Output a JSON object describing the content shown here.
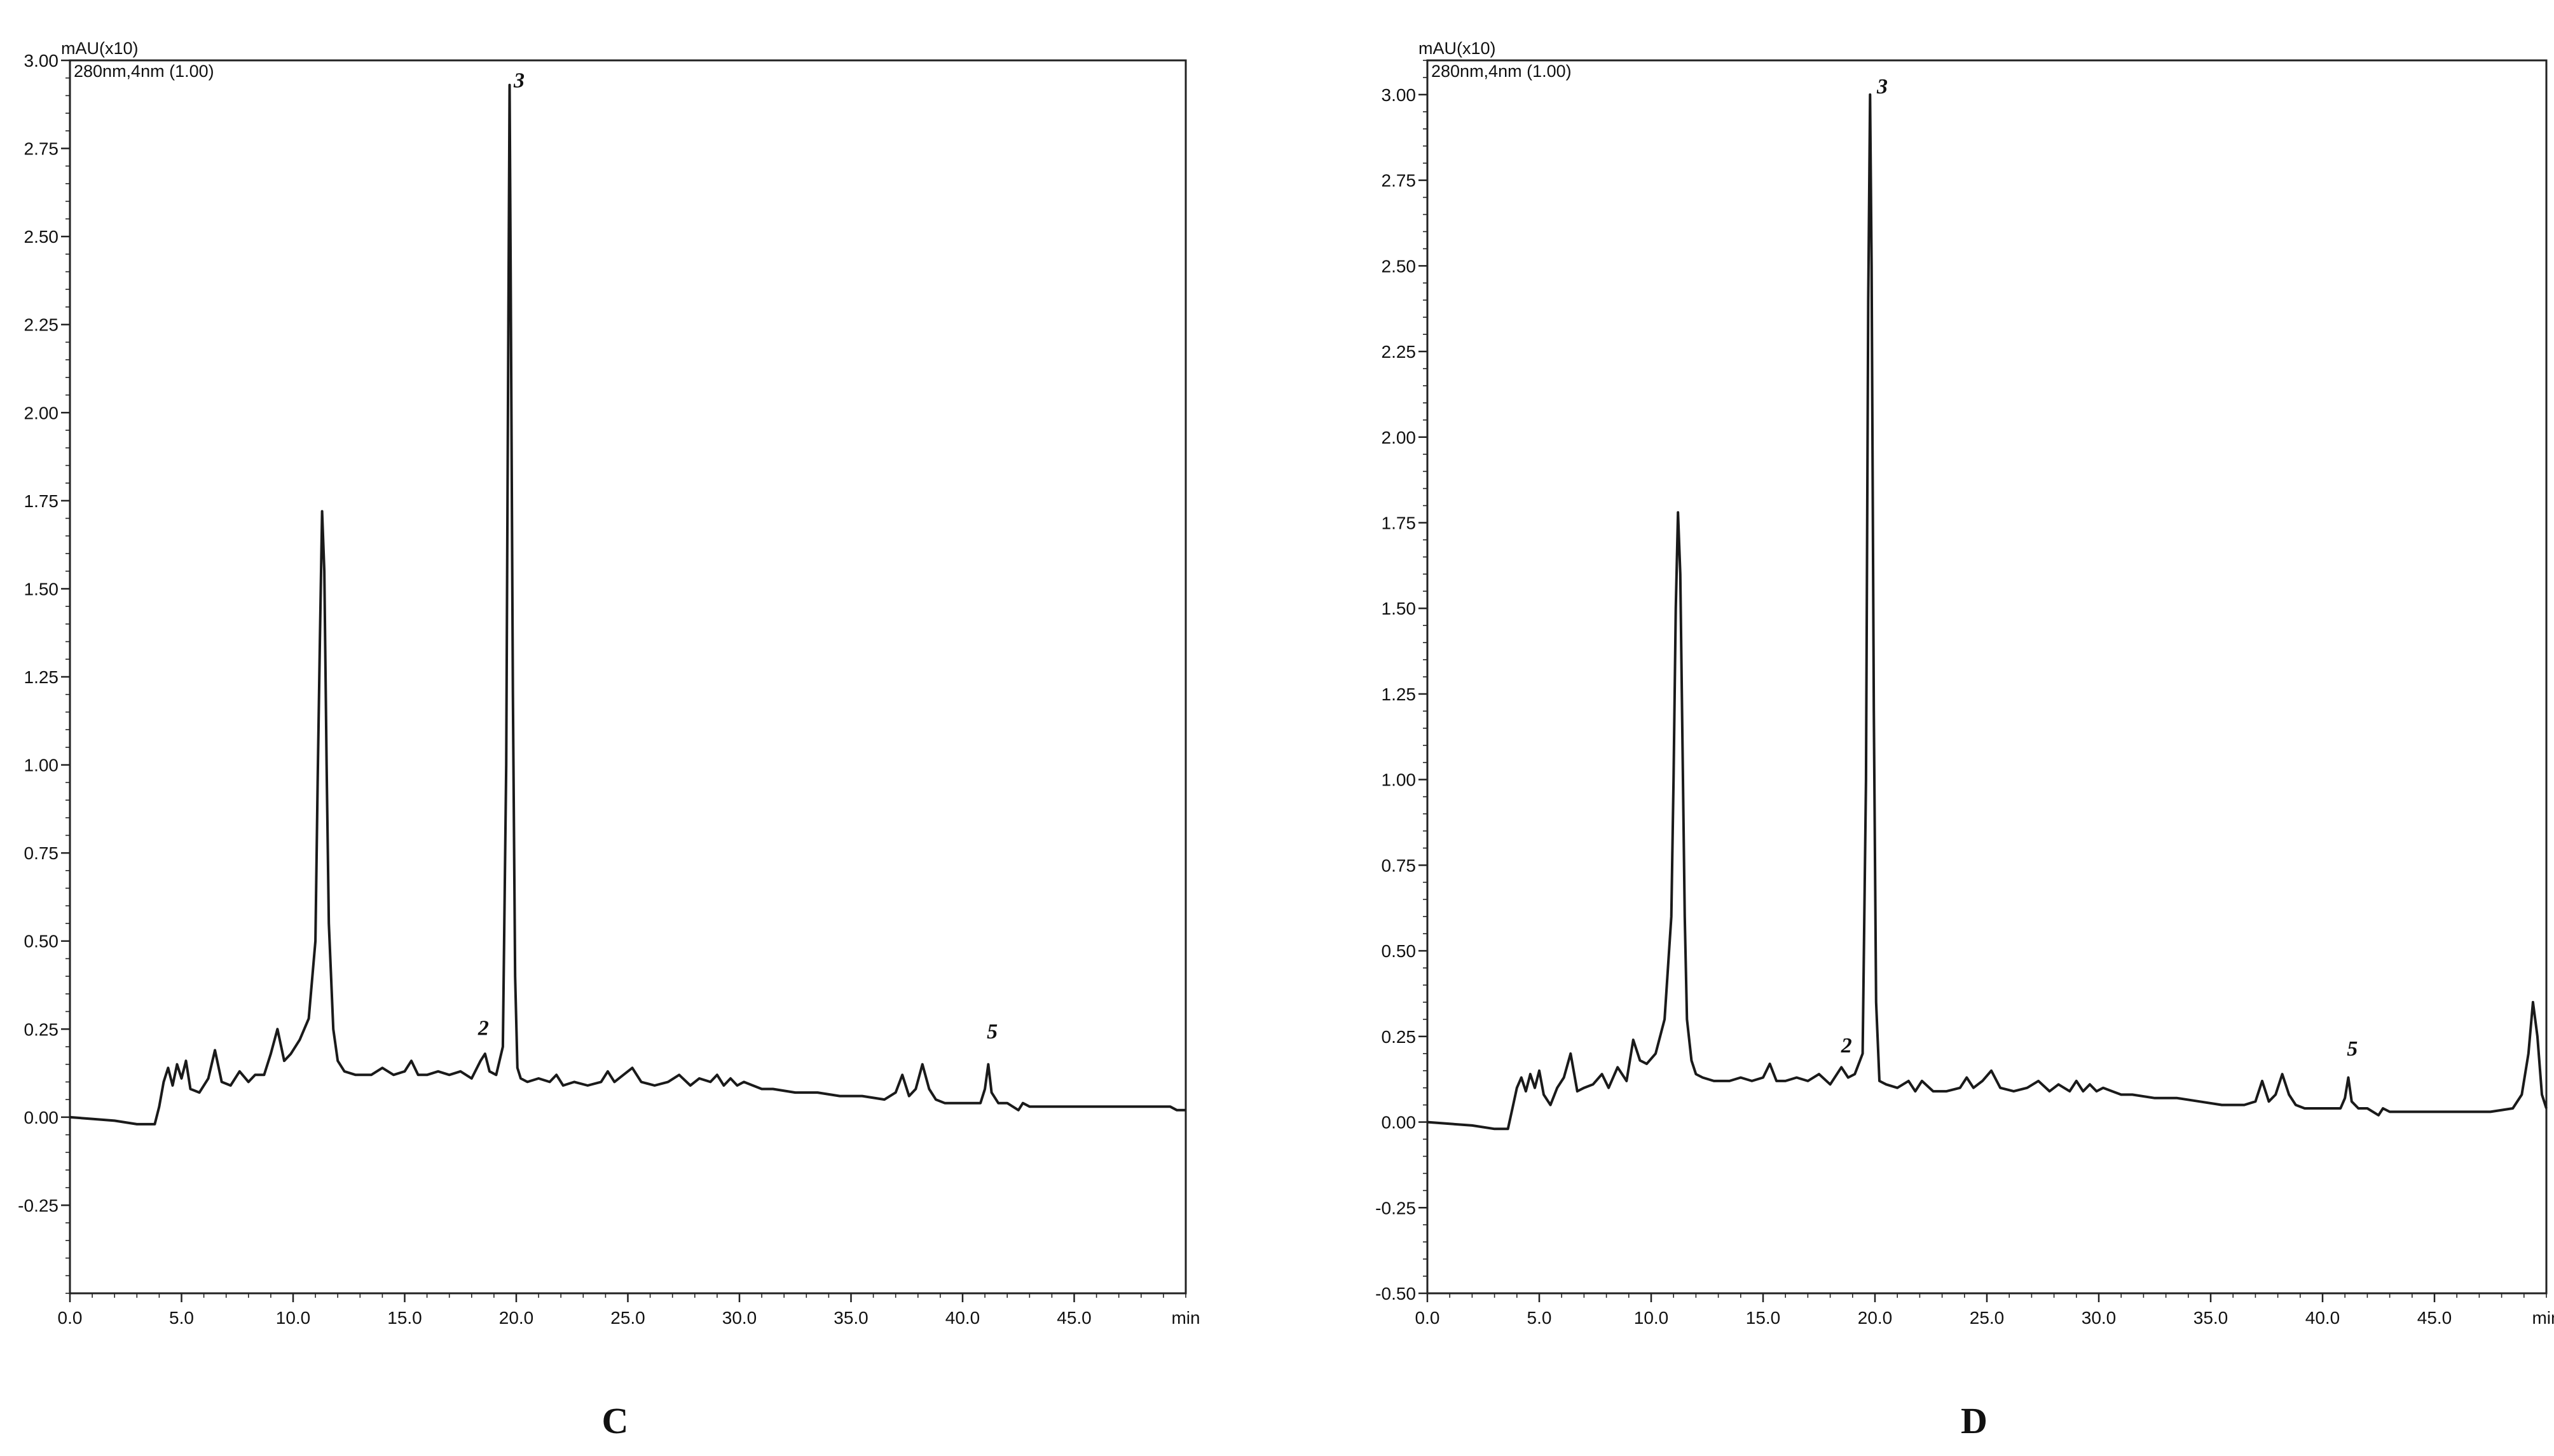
{
  "chart_data": [
    {
      "type": "line",
      "panel_label": "C",
      "unit_label": "mAU(x10)",
      "channel_label": "280nm,4nm (1.00)",
      "xlabel": "min",
      "xlim": [
        0,
        50
      ],
      "ylim": [
        -0.5,
        3.0
      ],
      "x_ticks": [
        "0.0",
        "5.0",
        "10.0",
        "15.0",
        "20.0",
        "25.0",
        "30.0",
        "35.0",
        "40.0",
        "45.0"
      ],
      "y_ticks": [
        "3.00",
        "2.75",
        "2.50",
        "2.25",
        "2.00",
        "1.75",
        "1.50",
        "1.25",
        "1.00",
        "0.75",
        "0.50",
        "0.25",
        "0.00",
        "-0.25"
      ],
      "y_tick_values": [
        3.0,
        2.75,
        2.5,
        2.25,
        2.0,
        1.75,
        1.5,
        1.25,
        1.0,
        0.75,
        0.5,
        0.25,
        0.0,
        -0.25
      ],
      "peak_labels": [
        {
          "text": "3",
          "x": 19.9,
          "y": 2.92
        },
        {
          "text": "2",
          "x": 18.3,
          "y": 0.23
        },
        {
          "text": "5",
          "x": 41.1,
          "y": 0.22
        }
      ],
      "series": [
        {
          "x": [
            0,
            1,
            2,
            3,
            3.8,
            4.0,
            4.2,
            4.4,
            4.6,
            4.8,
            5.0,
            5.2,
            5.4,
            5.8,
            6.2,
            6.5,
            6.8,
            7.2,
            7.6,
            8.0,
            8.3,
            8.7,
            9.0,
            9.3,
            9.6,
            9.9,
            10.3,
            10.7,
            11.0,
            11.1,
            11.2,
            11.3,
            11.4,
            11.5,
            11.6,
            11.8,
            12.0,
            12.3,
            12.8,
            13.5,
            14.0,
            14.5,
            15.0,
            15.3,
            15.6,
            16.0,
            16.5,
            17.0,
            17.5,
            18.0,
            18.4,
            18.6,
            18.8,
            19.1,
            19.4,
            19.55,
            19.65,
            19.7,
            19.75,
            19.85,
            19.95,
            20.05,
            20.2,
            20.5,
            21.0,
            21.5,
            21.8,
            22.1,
            22.6,
            23.2,
            23.8,
            24.1,
            24.4,
            24.8,
            25.2,
            25.6,
            26.2,
            26.8,
            27.3,
            27.8,
            28.2,
            28.7,
            29.0,
            29.3,
            29.6,
            29.9,
            30.2,
            30.6,
            31.0,
            31.5,
            32.5,
            33.5,
            34.5,
            35.5,
            36.5,
            37.0,
            37.3,
            37.6,
            37.9,
            38.2,
            38.5,
            38.8,
            39.2,
            39.6,
            40.0,
            40.5,
            40.8,
            41.0,
            41.15,
            41.3,
            41.6,
            42.0,
            42.5,
            42.7,
            43.0,
            43.5,
            44.5,
            45.5,
            46.5,
            47.5,
            48.5,
            49.3,
            49.6,
            50.0
          ],
          "y": [
            0.0,
            -0.005,
            -0.01,
            -0.02,
            -0.02,
            0.03,
            0.1,
            0.14,
            0.09,
            0.15,
            0.11,
            0.16,
            0.08,
            0.07,
            0.11,
            0.19,
            0.1,
            0.09,
            0.13,
            0.1,
            0.12,
            0.12,
            0.18,
            0.25,
            0.16,
            0.18,
            0.22,
            0.28,
            0.5,
            0.95,
            1.35,
            1.72,
            1.55,
            1.0,
            0.55,
            0.25,
            0.16,
            0.13,
            0.12,
            0.12,
            0.14,
            0.12,
            0.13,
            0.16,
            0.12,
            0.12,
            0.13,
            0.12,
            0.13,
            0.11,
            0.16,
            0.18,
            0.13,
            0.12,
            0.2,
            1.0,
            2.3,
            2.93,
            2.4,
            1.2,
            0.4,
            0.14,
            0.11,
            0.1,
            0.11,
            0.1,
            0.12,
            0.09,
            0.1,
            0.09,
            0.1,
            0.13,
            0.1,
            0.12,
            0.14,
            0.1,
            0.09,
            0.1,
            0.12,
            0.09,
            0.11,
            0.1,
            0.12,
            0.09,
            0.11,
            0.09,
            0.1,
            0.09,
            0.08,
            0.08,
            0.07,
            0.07,
            0.06,
            0.06,
            0.05,
            0.07,
            0.12,
            0.06,
            0.08,
            0.15,
            0.08,
            0.05,
            0.04,
            0.04,
            0.04,
            0.04,
            0.04,
            0.08,
            0.15,
            0.07,
            0.04,
            0.04,
            0.02,
            0.04,
            0.03,
            0.03,
            0.03,
            0.03,
            0.03,
            0.03,
            0.03,
            0.03,
            0.02,
            0.02
          ]
        }
      ]
    },
    {
      "type": "line",
      "panel_label": "D",
      "unit_label": "mAU(x10)",
      "channel_label": "280nm,4nm (1.00)",
      "xlabel": "min",
      "xlim": [
        0,
        50
      ],
      "ylim": [
        -0.5,
        3.1
      ],
      "x_ticks": [
        "0.0",
        "5.0",
        "10.0",
        "15.0",
        "20.0",
        "25.0",
        "30.0",
        "35.0",
        "40.0",
        "45.0"
      ],
      "y_ticks": [
        "3.00",
        "2.75",
        "2.50",
        "2.25",
        "2.00",
        "1.75",
        "1.50",
        "1.25",
        "1.00",
        "0.75",
        "0.50",
        "0.25",
        "0.00",
        "-0.25",
        "-0.50"
      ],
      "y_tick_values": [
        3.0,
        2.75,
        2.5,
        2.25,
        2.0,
        1.75,
        1.5,
        1.25,
        1.0,
        0.75,
        0.5,
        0.25,
        0.0,
        -0.25,
        -0.5
      ],
      "peak_labels": [
        {
          "text": "3",
          "x": 20.1,
          "y": 3.0
        },
        {
          "text": "2",
          "x": 18.5,
          "y": 0.2
        },
        {
          "text": "5",
          "x": 41.1,
          "y": 0.19
        }
      ],
      "series": [
        {
          "x": [
            0,
            1,
            2,
            3,
            3.6,
            3.8,
            4.0,
            4.2,
            4.4,
            4.6,
            4.8,
            5.0,
            5.2,
            5.5,
            5.8,
            6.1,
            6.4,
            6.7,
            7.0,
            7.4,
            7.8,
            8.1,
            8.5,
            8.9,
            9.2,
            9.5,
            9.8,
            10.2,
            10.6,
            10.9,
            11.0,
            11.1,
            11.2,
            11.3,
            11.4,
            11.5,
            11.6,
            11.8,
            12.0,
            12.3,
            12.8,
            13.5,
            14.0,
            14.5,
            15.0,
            15.3,
            15.6,
            16.0,
            16.5,
            17.0,
            17.5,
            18.0,
            18.5,
            18.8,
            19.1,
            19.45,
            19.6,
            19.7,
            19.78,
            19.85,
            19.95,
            20.05,
            20.2,
            20.5,
            21.0,
            21.5,
            21.8,
            22.1,
            22.6,
            23.2,
            23.8,
            24.1,
            24.4,
            24.8,
            25.2,
            25.6,
            26.2,
            26.8,
            27.3,
            27.8,
            28.2,
            28.7,
            29.0,
            29.3,
            29.6,
            29.9,
            30.2,
            30.6,
            31.0,
            31.5,
            32.5,
            33.5,
            34.5,
            35.5,
            36.5,
            37.0,
            37.3,
            37.6,
            37.9,
            38.2,
            38.5,
            38.8,
            39.2,
            39.6,
            40.0,
            40.5,
            40.8,
            41.0,
            41.15,
            41.3,
            41.6,
            42.0,
            42.5,
            42.7,
            43.0,
            43.5,
            44.5,
            45.5,
            46.5,
            47.5,
            48.5,
            48.9,
            49.2,
            49.4,
            49.6,
            49.8,
            50.0
          ],
          "y": [
            0.0,
            -0.005,
            -0.01,
            -0.02,
            -0.02,
            0.04,
            0.1,
            0.13,
            0.09,
            0.14,
            0.1,
            0.15,
            0.08,
            0.05,
            0.1,
            0.13,
            0.2,
            0.09,
            0.1,
            0.11,
            0.14,
            0.1,
            0.16,
            0.12,
            0.24,
            0.18,
            0.17,
            0.2,
            0.3,
            0.6,
            1.0,
            1.5,
            1.78,
            1.6,
            1.1,
            0.6,
            0.3,
            0.18,
            0.14,
            0.13,
            0.12,
            0.12,
            0.13,
            0.12,
            0.13,
            0.17,
            0.12,
            0.12,
            0.13,
            0.12,
            0.14,
            0.11,
            0.16,
            0.13,
            0.14,
            0.2,
            1.0,
            2.4,
            3.0,
            2.5,
            1.2,
            0.35,
            0.12,
            0.11,
            0.1,
            0.12,
            0.09,
            0.12,
            0.09,
            0.09,
            0.1,
            0.13,
            0.1,
            0.12,
            0.15,
            0.1,
            0.09,
            0.1,
            0.12,
            0.09,
            0.11,
            0.09,
            0.12,
            0.09,
            0.11,
            0.09,
            0.1,
            0.09,
            0.08,
            0.08,
            0.07,
            0.07,
            0.06,
            0.05,
            0.05,
            0.06,
            0.12,
            0.06,
            0.08,
            0.14,
            0.08,
            0.05,
            0.04,
            0.04,
            0.04,
            0.04,
            0.04,
            0.07,
            0.13,
            0.06,
            0.04,
            0.04,
            0.02,
            0.04,
            0.03,
            0.03,
            0.03,
            0.03,
            0.03,
            0.03,
            0.04,
            0.08,
            0.2,
            0.35,
            0.25,
            0.08,
            0.04
          ]
        }
      ]
    }
  ]
}
